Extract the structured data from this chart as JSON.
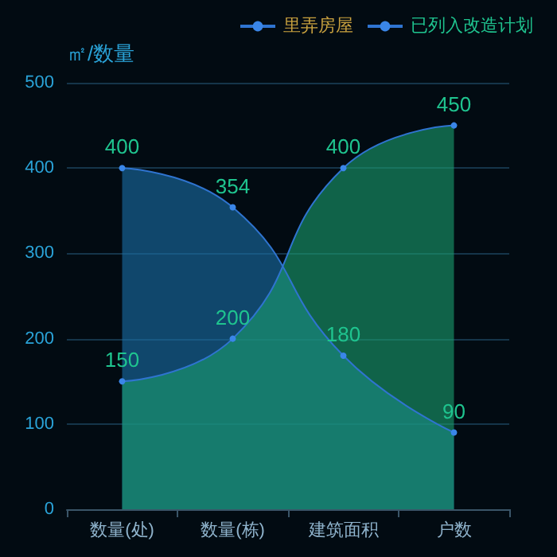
{
  "chart_data": {
    "type": "area",
    "ylabel": "㎡/数量",
    "categories": [
      "数量(处)",
      "数量(栋)",
      "建筑面积",
      "户数"
    ],
    "series": [
      {
        "name": "里弄房屋",
        "color": "#1b6fa8",
        "values": [
          400,
          354,
          180,
          90
        ]
      },
      {
        "name": "已列入改造计划",
        "color": "#1a9e6e",
        "values": [
          150,
          200,
          400,
          450
        ]
      }
    ],
    "ylim": [
      0,
      500
    ],
    "yticks": [
      0,
      100,
      200,
      300,
      400,
      500
    ],
    "grid": "y",
    "legend": "top right",
    "marker": "circle",
    "line_style": "solid",
    "data_labels": true
  }
}
